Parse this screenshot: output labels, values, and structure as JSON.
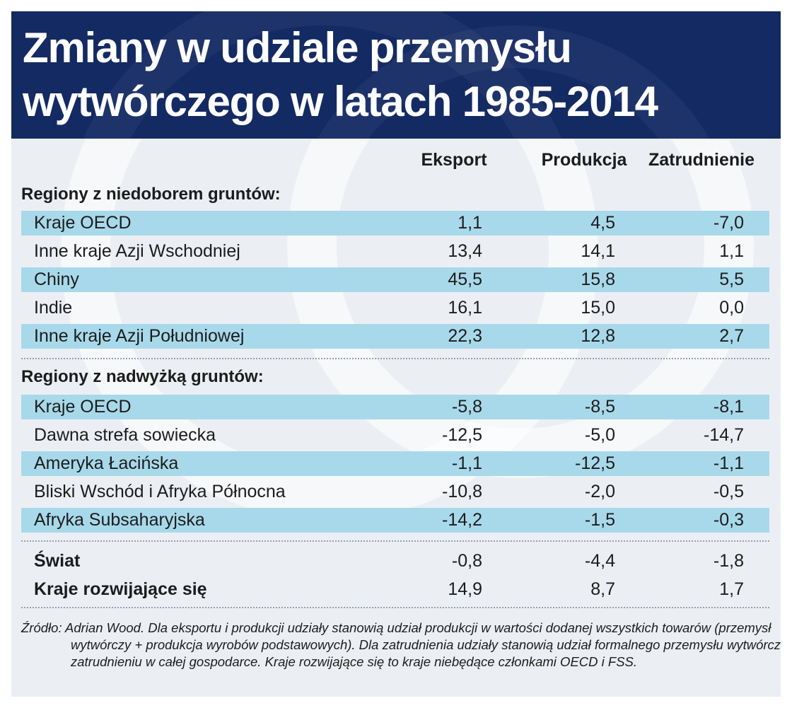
{
  "title": "Zmiany w udziale przemysłu wytwórczego w latach 1985-2014",
  "chart_data": {
    "type": "table",
    "columns": [
      "Eksport",
      "Produkcja",
      "Zatrudnienie"
    ],
    "sections": [
      {
        "heading": "Regiony z niedoborem gruntów:",
        "rows": [
          {
            "label": "Kraje OECD",
            "values": [
              "1,1",
              "4,5",
              "-7,0"
            ]
          },
          {
            "label": "Inne kraje Azji Wschodniej",
            "values": [
              "13,4",
              "14,1",
              "1,1"
            ]
          },
          {
            "label": "Chiny",
            "values": [
              "45,5",
              "15,8",
              "5,5"
            ]
          },
          {
            "label": "Indie",
            "values": [
              "16,1",
              "15,0",
              "0,0"
            ]
          },
          {
            "label": "Inne kraje Azji Południowej",
            "values": [
              "22,3",
              "12,8",
              "2,7"
            ]
          }
        ]
      },
      {
        "heading": "Regiony z nadwyżką gruntów:",
        "rows": [
          {
            "label": "Kraje OECD",
            "values": [
              "-5,8",
              "-8,5",
              "-8,1"
            ]
          },
          {
            "label": "Dawna strefa sowiecka",
            "values": [
              "-12,5",
              "-5,0",
              "-14,7"
            ]
          },
          {
            "label": "Ameryka Łacińska",
            "values": [
              "-1,1",
              "-12,5",
              "-1,1"
            ]
          },
          {
            "label": "Bliski Wschód i Afryka Północna",
            "values": [
              "-10,8",
              "-2,0",
              "-0,5"
            ]
          },
          {
            "label": "Afryka Subsaharyjska",
            "values": [
              "-14,2",
              "-1,5",
              "-0,3"
            ]
          }
        ]
      }
    ],
    "totals": [
      {
        "label": "Świat",
        "values": [
          "-0,8",
          "-4,4",
          "-1,8"
        ]
      },
      {
        "label": "Kraje rozwijające się",
        "values": [
          "14,9",
          "8,7",
          "1,7"
        ]
      }
    ]
  },
  "source": "Źródło: Adrian Wood. Dla eksportu i produkcji udziały stanowią udział produkcji w wartości dodanej wszystkich towarów (przemysł wytwórczy + produkcja wyrobów podstawowych). Dla zatrudnienia udziały stanowią udział formalnego przemysłu wytwórczego w zatrudnieniu w całej gospodarce. Kraje rozwijające się to kraje niebędące członkami OECD i FSS.",
  "colors": {
    "header_bg": "#142a63",
    "body_bg": "#ebeff3",
    "row_highlight": "#a8d9ea",
    "text": "#1c1c1c"
  }
}
